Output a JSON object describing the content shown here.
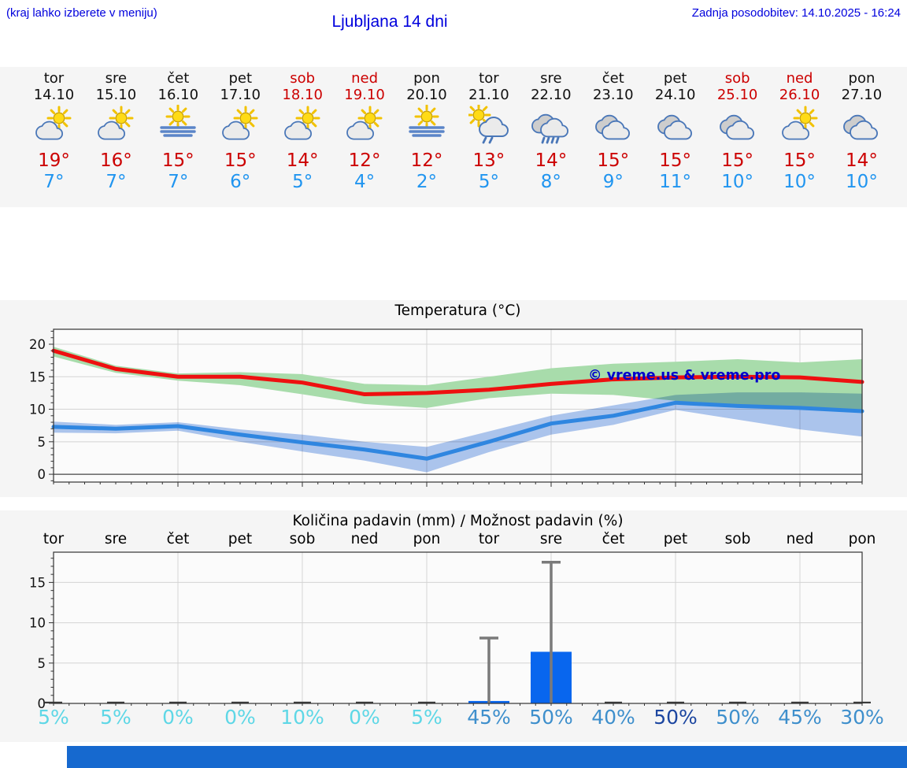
{
  "header": {
    "hint": "(kraj lahko izberete v meniju)",
    "title": "Ljubljana 14 dni",
    "updated": "Zadnja posodobitev: 14.10.2025 - 16:24"
  },
  "colors": {
    "header_blue": "#0000dd",
    "high_red": "#cc0000",
    "low_blue": "#2095f0",
    "bar_blue": "#0866ee",
    "prob_low": "#5ed7e6",
    "prob_mid": "#3e8fcc",
    "prob_dark": "#1c46a0",
    "band_green": "#a8dcab",
    "band_blue": "#aec7f0",
    "line_red": "#ee1010",
    "line_blue": "#2f86e0"
  },
  "days": [
    {
      "name": "tor",
      "date": "14.10",
      "weekend": false,
      "icon": "sun-cloud",
      "high": "19°",
      "low": "7°"
    },
    {
      "name": "sre",
      "date": "15.10",
      "weekend": false,
      "icon": "sun-cloud",
      "high": "16°",
      "low": "7°"
    },
    {
      "name": "čet",
      "date": "16.10",
      "weekend": false,
      "icon": "sun-fog",
      "high": "15°",
      "low": "7°"
    },
    {
      "name": "pet",
      "date": "17.10",
      "weekend": false,
      "icon": "sun-cloud",
      "high": "15°",
      "low": "6°"
    },
    {
      "name": "sob",
      "date": "18.10",
      "weekend": true,
      "icon": "sun-cloud",
      "high": "14°",
      "low": "5°"
    },
    {
      "name": "ned",
      "date": "19.10",
      "weekend": true,
      "icon": "sun-cloud",
      "high": "12°",
      "low": "4°"
    },
    {
      "name": "pon",
      "date": "20.10",
      "weekend": false,
      "icon": "sun-fog",
      "high": "12°",
      "low": "2°"
    },
    {
      "name": "tor",
      "date": "21.10",
      "weekend": false,
      "icon": "sun-cloud-rain",
      "high": "13°",
      "low": "5°"
    },
    {
      "name": "sre",
      "date": "22.10",
      "weekend": false,
      "icon": "clouds-rain",
      "high": "14°",
      "low": "8°"
    },
    {
      "name": "čet",
      "date": "23.10",
      "weekend": false,
      "icon": "clouds",
      "high": "15°",
      "low": "9°"
    },
    {
      "name": "pet",
      "date": "24.10",
      "weekend": false,
      "icon": "clouds",
      "high": "15°",
      "low": "11°"
    },
    {
      "name": "sob",
      "date": "25.10",
      "weekend": true,
      "icon": "clouds",
      "high": "15°",
      "low": "10°"
    },
    {
      "name": "ned",
      "date": "26.10",
      "weekend": true,
      "icon": "sun-cloud",
      "high": "15°",
      "low": "10°"
    },
    {
      "name": "pon",
      "date": "27.10",
      "weekend": false,
      "icon": "clouds",
      "high": "14°",
      "low": "10°"
    }
  ],
  "chart_data": [
    {
      "type": "line",
      "title": "Temperatura (°C)",
      "watermark": "© vreme.us & vreme.pro",
      "categories": [
        "tor",
        "sre",
        "čet",
        "pet",
        "sob",
        "ned",
        "pon",
        "tor",
        "sre",
        "čet",
        "pet",
        "sob",
        "ned",
        "pon"
      ],
      "yticks": [
        0,
        5,
        10,
        15,
        20
      ],
      "ylim": [
        -1.2,
        22.3
      ],
      "grid_days": [
        2,
        4,
        6,
        8,
        10,
        12
      ],
      "series": [
        {
          "name": "max-temp",
          "color": "#ee1010",
          "values": [
            19,
            16.2,
            15,
            15,
            14.1,
            12.3,
            12.5,
            13,
            13.9,
            14.6,
            14.9,
            15,
            14.9,
            14.2
          ]
        },
        {
          "name": "min-temp",
          "color": "#2f86e0",
          "values": [
            7.3,
            7,
            7.4,
            6.1,
            4.9,
            3.8,
            2.4,
            5,
            7.8,
            9,
            11,
            10.5,
            10.2,
            9.7
          ]
        }
      ],
      "bands": [
        {
          "name": "max-range",
          "color": "#a8dcab",
          "blend": false,
          "upper": [
            19.6,
            16.7,
            15.5,
            15.7,
            15.4,
            13.9,
            13.7,
            15,
            16.3,
            17,
            17.3,
            17.7,
            17.2,
            17.7
          ],
          "lower": [
            18.1,
            15.6,
            14.4,
            13.7,
            12.3,
            10.8,
            10.2,
            11.7,
            12.4,
            12.2,
            11.3,
            10.5,
            10.2,
            10
          ]
        },
        {
          "name": "min-range",
          "color": "#aec7f0",
          "blend": true,
          "upper": [
            8.1,
            7.6,
            8,
            6.9,
            6.1,
            5,
            4.2,
            6.6,
            9,
            10.6,
            12.2,
            12.6,
            12.6,
            12.4
          ],
          "lower": [
            6.4,
            6.3,
            6.7,
            5,
            3.5,
            2.1,
            0.3,
            3.4,
            6.1,
            7.6,
            9.9,
            8.4,
            6.9,
            5.8
          ]
        }
      ]
    },
    {
      "type": "bar",
      "title": "Količina padavin (mm) / Možnost padavin (%)",
      "categories": [
        "tor",
        "sre",
        "čet",
        "pet",
        "sob",
        "ned",
        "pon",
        "tor",
        "sre",
        "čet",
        "pet",
        "sob",
        "ned",
        "pon"
      ],
      "yticks": [
        0,
        5,
        10,
        15
      ],
      "ylim": [
        0,
        18.75
      ],
      "grid_days": [
        2,
        4,
        6,
        8,
        10,
        12
      ],
      "bar_color": "#0866ee",
      "values": [
        0,
        0,
        0,
        0,
        0,
        0,
        0,
        0.3,
        6.4,
        0,
        0,
        0,
        0,
        0
      ],
      "whisker_tops": [
        0,
        0,
        0,
        0,
        0,
        0,
        0,
        8.1,
        17.5,
        0,
        0,
        0,
        0,
        0
      ],
      "probabilities": [
        "5%",
        "5%",
        "0%",
        "0%",
        "10%",
        "0%",
        "5%",
        "45%",
        "50%",
        "40%",
        "50%",
        "50%",
        "45%",
        "30%"
      ],
      "prob_colors": [
        "prob_low",
        "prob_low",
        "prob_low",
        "prob_low",
        "prob_low",
        "prob_low",
        "prob_low",
        "prob_mid",
        "prob_mid",
        "prob_mid",
        "prob_dark",
        "prob_mid",
        "prob_mid",
        "prob_mid"
      ]
    }
  ]
}
